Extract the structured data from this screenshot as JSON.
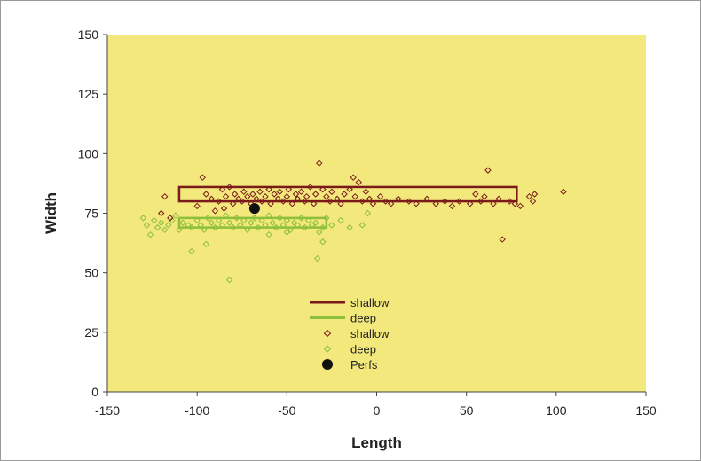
{
  "chart_data": {
    "type": "scatter",
    "title": "",
    "xlabel": "Length",
    "ylabel": "Width",
    "xlim": [
      -150,
      150
    ],
    "ylim": [
      0,
      150
    ],
    "xticks": [
      "-150",
      "-100",
      "-50",
      "0",
      "50",
      "100",
      "150"
    ],
    "yticks": [
      "0",
      "25",
      "50",
      "75",
      "100",
      "125",
      "150"
    ],
    "grid": false,
    "legend_position": "center-bottom",
    "colors": {
      "plot_background": "#f2e87c",
      "shallow": "#7a1a1a",
      "deep": "#8cbf3c",
      "perfs": "#111111"
    },
    "legend": [
      {
        "label": "shallow",
        "kind": "line",
        "series": "shallow_box"
      },
      {
        "label": "deep",
        "kind": "line",
        "series": "deep_box"
      },
      {
        "label": "shallow",
        "kind": "marker",
        "series": "shallow_points"
      },
      {
        "label": "deep",
        "kind": "marker",
        "series": "deep_points"
      },
      {
        "label": "Perfs",
        "kind": "dot",
        "series": "perfs"
      }
    ],
    "series": [
      {
        "name": "shallow",
        "key": "shallow_box",
        "type": "rectangle",
        "x": [
          -110,
          78
        ],
        "y": [
          80,
          86
        ]
      },
      {
        "name": "deep",
        "key": "deep_box",
        "type": "rectangle",
        "x": [
          -110,
          -28
        ],
        "y": [
          69,
          73
        ]
      },
      {
        "name": "shallow",
        "key": "shallow_points",
        "type": "scatter",
        "points": [
          [
            -118,
            82
          ],
          [
            -97,
            90
          ],
          [
            -95,
            83
          ],
          [
            -92,
            81
          ],
          [
            -88,
            80
          ],
          [
            -86,
            85
          ],
          [
            -84,
            82
          ],
          [
            -82,
            86
          ],
          [
            -80,
            79
          ],
          [
            -79,
            83
          ],
          [
            -77,
            81
          ],
          [
            -75,
            80
          ],
          [
            -74,
            84
          ],
          [
            -72,
            82
          ],
          [
            -70,
            79
          ],
          [
            -69,
            83
          ],
          [
            -67,
            81
          ],
          [
            -65,
            84
          ],
          [
            -64,
            80
          ],
          [
            -62,
            82
          ],
          [
            -60,
            85
          ],
          [
            -59,
            79
          ],
          [
            -57,
            83
          ],
          [
            -55,
            81
          ],
          [
            -54,
            84
          ],
          [
            -52,
            80
          ],
          [
            -50,
            82
          ],
          [
            -49,
            85
          ],
          [
            -47,
            79
          ],
          [
            -45,
            83
          ],
          [
            -44,
            81
          ],
          [
            -42,
            84
          ],
          [
            -40,
            80
          ],
          [
            -39,
            82
          ],
          [
            -37,
            86
          ],
          [
            -35,
            79
          ],
          [
            -34,
            83
          ],
          [
            -32,
            96
          ],
          [
            -30,
            85
          ],
          [
            -28,
            82
          ],
          [
            -26,
            80
          ],
          [
            -25,
            84
          ],
          [
            -22,
            81
          ],
          [
            -20,
            79
          ],
          [
            -18,
            83
          ],
          [
            -15,
            85
          ],
          [
            -13,
            90
          ],
          [
            -12,
            82
          ],
          [
            -10,
            88
          ],
          [
            -8,
            80
          ],
          [
            -6,
            84
          ],
          [
            -4,
            81
          ],
          [
            -2,
            79
          ],
          [
            2,
            82
          ],
          [
            5,
            80
          ],
          [
            8,
            79
          ],
          [
            12,
            81
          ],
          [
            18,
            80
          ],
          [
            22,
            79
          ],
          [
            28,
            81
          ],
          [
            33,
            79
          ],
          [
            38,
            80
          ],
          [
            42,
            78
          ],
          [
            46,
            80
          ],
          [
            52,
            79
          ],
          [
            55,
            83
          ],
          [
            58,
            80
          ],
          [
            60,
            82
          ],
          [
            62,
            93
          ],
          [
            65,
            79
          ],
          [
            68,
            81
          ],
          [
            70,
            64
          ],
          [
            74,
            80
          ],
          [
            77,
            79
          ],
          [
            80,
            78
          ],
          [
            85,
            82
          ],
          [
            87,
            80
          ],
          [
            88,
            83
          ],
          [
            104,
            84
          ],
          [
            -100,
            78
          ],
          [
            -115,
            73
          ],
          [
            -120,
            75
          ],
          [
            -90,
            76
          ],
          [
            -85,
            77
          ]
        ]
      },
      {
        "name": "deep",
        "key": "deep_points",
        "type": "scatter",
        "points": [
          [
            -130,
            73
          ],
          [
            -128,
            70
          ],
          [
            -126,
            66
          ],
          [
            -124,
            72
          ],
          [
            -122,
            69
          ],
          [
            -120,
            71
          ],
          [
            -118,
            68
          ],
          [
            -116,
            70
          ],
          [
            -114,
            72
          ],
          [
            -112,
            74
          ],
          [
            -110,
            68
          ],
          [
            -108,
            71
          ],
          [
            -105,
            70
          ],
          [
            -103,
            69
          ],
          [
            -100,
            72
          ],
          [
            -98,
            70
          ],
          [
            -96,
            68
          ],
          [
            -94,
            73
          ],
          [
            -92,
            71
          ],
          [
            -90,
            69
          ],
          [
            -88,
            72
          ],
          [
            -86,
            70
          ],
          [
            -84,
            74
          ],
          [
            -82,
            71
          ],
          [
            -80,
            69
          ],
          [
            -78,
            73
          ],
          [
            -76,
            70
          ],
          [
            -74,
            72
          ],
          [
            -72,
            68
          ],
          [
            -70,
            71
          ],
          [
            -68,
            73
          ],
          [
            -66,
            69
          ],
          [
            -64,
            72
          ],
          [
            -62,
            70
          ],
          [
            -60,
            74
          ],
          [
            -58,
            71
          ],
          [
            -56,
            69
          ],
          [
            -54,
            73
          ],
          [
            -52,
            70
          ],
          [
            -50,
            72
          ],
          [
            -48,
            68
          ],
          [
            -46,
            71
          ],
          [
            -44,
            70
          ],
          [
            -42,
            73
          ],
          [
            -40,
            69
          ],
          [
            -38,
            72
          ],
          [
            -36,
            70
          ],
          [
            -34,
            71
          ],
          [
            -32,
            67
          ],
          [
            -30,
            69
          ],
          [
            -28,
            73
          ],
          [
            -25,
            70
          ],
          [
            -20,
            72
          ],
          [
            -15,
            69
          ],
          [
            -8,
            70
          ],
          [
            -5,
            75
          ],
          [
            -103,
            59
          ],
          [
            -95,
            62
          ],
          [
            -82,
            47
          ],
          [
            -60,
            66
          ],
          [
            -50,
            67
          ],
          [
            -33,
            56
          ],
          [
            -30,
            63
          ]
        ]
      },
      {
        "name": "Perfs",
        "key": "perfs",
        "type": "scatter",
        "points": [
          [
            -68,
            77
          ]
        ]
      }
    ]
  }
}
